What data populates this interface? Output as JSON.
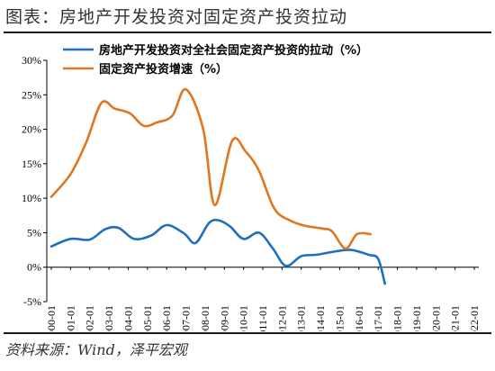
{
  "header": {
    "title": "图表：房地产开发投资对固定资产投资拉动"
  },
  "footer": {
    "source": "资料来源：Wind，泽平宏观"
  },
  "chart_data": {
    "type": "line",
    "title": "",
    "xlabel": "",
    "ylabel": "",
    "ylim": [
      -5,
      30
    ],
    "yticks": [
      -5,
      0,
      5,
      10,
      15,
      20,
      25,
      30
    ],
    "ytick_labels": [
      "-5%",
      "0%",
      "5%",
      "10%",
      "15%",
      "20%",
      "25%",
      "30%"
    ],
    "x_labels": [
      "2000-01",
      "2001-01",
      "2002-01",
      "2003-01",
      "2004-01",
      "2005-01",
      "2006-01",
      "2007-01",
      "2008-01",
      "2009-01",
      "2010-01",
      "2011-01",
      "2012-01",
      "2013-01",
      "2014-01",
      "2015-01",
      "2016-01",
      "2017-01",
      "2018-01",
      "2019-01",
      "2020-01",
      "2021-01",
      "2022-01"
    ],
    "grid": false,
    "legend_position": "top-left",
    "series": [
      {
        "name": "房地产开发投资对全社会固定资产投资的拉动（%）",
        "color": "#1f6fbf",
        "points": [
          [
            0,
            3.0
          ],
          [
            1,
            4.1
          ],
          [
            2,
            4.0
          ],
          [
            2.8,
            5.5
          ],
          [
            3.5,
            5.7
          ],
          [
            4.3,
            4.1
          ],
          [
            5.2,
            4.6
          ],
          [
            6.0,
            6.1
          ],
          [
            6.9,
            4.9
          ],
          [
            7.5,
            3.5
          ],
          [
            8.2,
            6.4
          ],
          [
            8.7,
            6.8
          ],
          [
            9.3,
            5.9
          ],
          [
            10,
            4.1
          ],
          [
            10.8,
            5.0
          ],
          [
            11.5,
            2.8
          ],
          [
            12.2,
            0.2
          ],
          [
            13,
            1.6
          ],
          [
            13.8,
            1.8
          ],
          [
            14.8,
            2.3
          ],
          [
            15.6,
            2.5
          ],
          [
            16.5,
            1.8
          ],
          [
            17.0,
            1.2
          ],
          [
            17.35,
            -2.4
          ]
        ]
      },
      {
        "name": "固定资产投资增速（%）",
        "color": "#e0761f",
        "points": [
          [
            0,
            10.2
          ],
          [
            1,
            13.5
          ],
          [
            1.8,
            18.0
          ],
          [
            2.6,
            23.8
          ],
          [
            3.3,
            23.0
          ],
          [
            4.1,
            22.3
          ],
          [
            4.8,
            20.5
          ],
          [
            5.5,
            21.0
          ],
          [
            6.3,
            22.0
          ],
          [
            7.0,
            25.8
          ],
          [
            7.9,
            20.0
          ],
          [
            8.5,
            9.0
          ],
          [
            9.4,
            18.3
          ],
          [
            10.1,
            16.8
          ],
          [
            10.8,
            14.0
          ],
          [
            11.6,
            8.5
          ],
          [
            12.4,
            6.8
          ],
          [
            13.2,
            6.0
          ],
          [
            14.1,
            5.6
          ],
          [
            14.6,
            5.2
          ],
          [
            15.3,
            2.7
          ],
          [
            15.9,
            4.8
          ],
          [
            16.6,
            4.8
          ]
        ]
      }
    ]
  }
}
